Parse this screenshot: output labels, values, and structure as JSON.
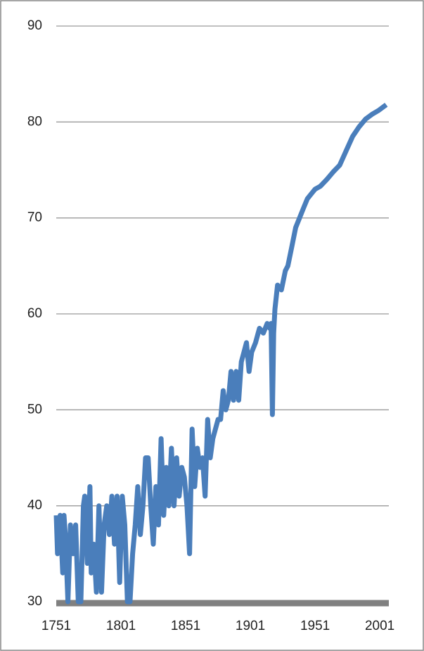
{
  "chart_data": {
    "type": "line",
    "color": "#4a7ebb",
    "x": [
      1751,
      1752,
      1754,
      1756,
      1757,
      1758,
      1760,
      1762,
      1764,
      1766,
      1768,
      1770,
      1772,
      1773,
      1775,
      1777,
      1778,
      1780,
      1782,
      1784,
      1786,
      1788,
      1790,
      1792,
      1794,
      1796,
      1798,
      1800,
      1802,
      1804,
      1806,
      1808,
      1810,
      1812,
      1814,
      1816,
      1818,
      1820,
      1822,
      1824,
      1826,
      1828,
      1830,
      1832,
      1834,
      1836,
      1838,
      1840,
      1842,
      1844,
      1846,
      1848,
      1850,
      1852,
      1854,
      1856,
      1858,
      1860,
      1862,
      1864,
      1866,
      1868,
      1870,
      1872,
      1874,
      1876,
      1878,
      1880,
      1882,
      1884,
      1886,
      1888,
      1890,
      1892,
      1894,
      1896,
      1898,
      1900,
      1902,
      1905,
      1908,
      1911,
      1914,
      1916,
      1917,
      1918,
      1919,
      1920,
      1922,
      1925,
      1928,
      1930,
      1933,
      1936,
      1939,
      1942,
      1945,
      1948,
      1951,
      1955,
      1960,
      1965,
      1970,
      1975,
      1980,
      1985,
      1990,
      1995,
      2000,
      2006
    ],
    "values": [
      39,
      35,
      39,
      33,
      39,
      37,
      30,
      38,
      35,
      38,
      30,
      30,
      40,
      41,
      34,
      42,
      33,
      36,
      31,
      40,
      31,
      38,
      40,
      37,
      41,
      36,
      41,
      32,
      41,
      38,
      30,
      30,
      35,
      38,
      42,
      37,
      40,
      45,
      45,
      40,
      36,
      42,
      38,
      47,
      39,
      44,
      40,
      46,
      40,
      45,
      41,
      44,
      43,
      40,
      35,
      48,
      42,
      46,
      44,
      45,
      41,
      49,
      45,
      47,
      48,
      49,
      49,
      52,
      50,
      51,
      54,
      51,
      54,
      51,
      55,
      56,
      57,
      54,
      56,
      57,
      58.5,
      58,
      59,
      58.5,
      59,
      49.5,
      58,
      60.5,
      63,
      62.5,
      64.5,
      65,
      67,
      69,
      70,
      71,
      72,
      72.5,
      73,
      73.3,
      74,
      74.8,
      75.5,
      77,
      78.5,
      79.5,
      80.3,
      80.8,
      81.2,
      81.8
    ],
    "xlim": [
      1751,
      2008
    ],
    "xticks": [
      1751,
      1801,
      1851,
      1901,
      1951,
      2001
    ],
    "ylim": [
      30,
      90
    ],
    "yticks": [
      30,
      40,
      50,
      60,
      70,
      80,
      90
    ],
    "grid": true
  }
}
